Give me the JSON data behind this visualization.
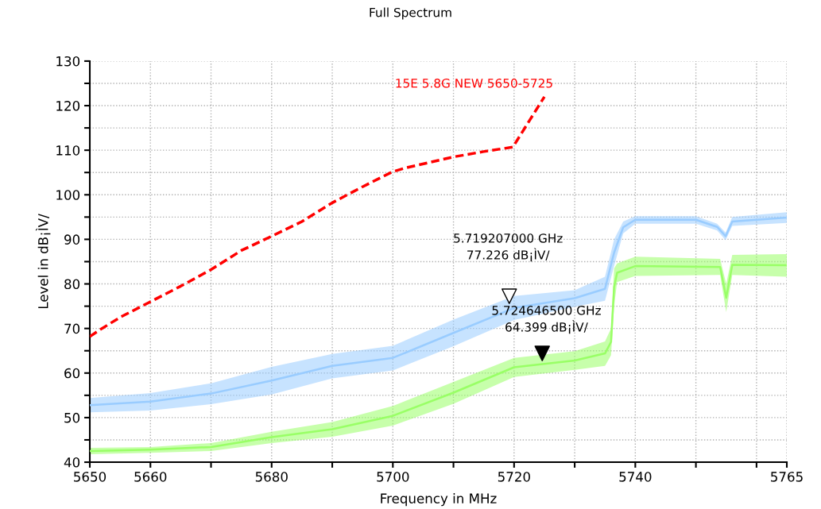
{
  "chart_data": {
    "type": "line",
    "title": "Full Spectrum",
    "xlabel": "Frequency in MHz",
    "ylabel": "Level in dB¡ÌV/",
    "xlim": [
      5650,
      5765
    ],
    "ylim": [
      40,
      130
    ],
    "xticks": [
      5650,
      5660,
      {
        "value": 5670,
        "label": null
      },
      5680,
      {
        "value": 5690,
        "label": null
      },
      5700,
      {
        "value": 5710,
        "label": null
      },
      5720,
      {
        "value": 5730,
        "label": null
      },
      5740,
      {
        "value": 5750,
        "label": null
      },
      {
        "value": 5760,
        "label": null
      },
      5765
    ],
    "yticks": [
      40,
      {
        "value": 45,
        "label": null
      },
      50,
      {
        "value": 55,
        "label": null
      },
      60,
      {
        "value": 65,
        "label": null
      },
      70,
      {
        "value": 75,
        "label": null
      },
      80,
      {
        "value": 85,
        "label": null
      },
      90,
      {
        "value": 95,
        "label": null
      },
      100,
      {
        "value": 105,
        "label": null
      },
      110,
      {
        "value": 115,
        "label": null
      },
      120,
      {
        "value": 125,
        "label": null
      },
      130
    ],
    "grid": true,
    "legend": false,
    "series": [
      {
        "color": "#99ccff",
        "x": [
          5650,
          5660,
          5670,
          5680,
          5690,
          5700,
          5710,
          5720,
          5730,
          5735,
          5736.5,
          5738,
          5740,
          5750,
          5753.5,
          5754.9,
          5756,
          5765
        ],
        "values": [
          52.8,
          53.6,
          55.4,
          58.3,
          61.6,
          63.4,
          69.0,
          74.6,
          76.8,
          78.9,
          87.0,
          92.7,
          94.4,
          94.4,
          92.8,
          90.7,
          94.0,
          94.9
        ],
        "lower": [
          51.2,
          51.6,
          53.0,
          55.2,
          58.8,
          60.6,
          66.0,
          71.9,
          74.9,
          76.2,
          84.0,
          91.3,
          93.5,
          93.5,
          92.0,
          89.8,
          93.0,
          93.7
        ],
        "upper": [
          54.4,
          55.5,
          57.7,
          61.4,
          64.3,
          66.1,
          72.0,
          77.3,
          78.6,
          81.6,
          90.0,
          94.0,
          95.2,
          95.2,
          93.5,
          91.5,
          95.0,
          96.1
        ]
      },
      {
        "color": "#99ff66",
        "x": [
          5650,
          5660,
          5670,
          5680,
          5690,
          5700,
          5710,
          5720,
          5730,
          5735,
          5736,
          5736.5,
          5737,
          5740,
          5754,
          5755,
          5756,
          5765
        ],
        "values": [
          42.5,
          42.8,
          43.4,
          45.6,
          47.4,
          50.4,
          55.6,
          61.3,
          62.8,
          64.4,
          67.0,
          79.3,
          82.5,
          84.0,
          83.8,
          76.9,
          84.3,
          84.2
        ],
        "lower": [
          41.8,
          42.1,
          42.5,
          44.3,
          45.7,
          48.2,
          53.1,
          59.1,
          60.7,
          61.6,
          64.0,
          75.0,
          80.4,
          81.8,
          82.0,
          73.7,
          82.0,
          81.6
        ],
        "upper": [
          43.2,
          43.4,
          44.3,
          46.8,
          49.0,
          52.6,
          58.0,
          63.4,
          64.9,
          67.1,
          70.0,
          83.5,
          84.6,
          86.1,
          85.6,
          80.0,
          86.5,
          86.7
        ]
      },
      {
        "name": "15E 5.8G NEW 5650-5725",
        "color": "#ff0000",
        "line_style": "dashed",
        "x": [
          5650,
          5652,
          5655,
          5660,
          5665,
          5670,
          5675,
          5680,
          5685,
          5690,
          5695,
          5700,
          5702,
          5710,
          5715,
          5719.8,
          5725
        ],
        "values": [
          68.2,
          70.0,
          72.5,
          76.0,
          79.5,
          83.2,
          87.5,
          90.7,
          94.0,
          98.2,
          101.8,
          105.2,
          106.0,
          108.5,
          109.7,
          110.7,
          122.0
        ]
      },
      {
        "type": "scatter",
        "marker": "triangle",
        "color": "#ffffff",
        "x": [
          5719.207
        ],
        "values": [
          77.226
        ]
      },
      {
        "type": "scatter",
        "marker": "triangle",
        "color": "#000000",
        "x": [
          5724.6465
        ],
        "values": [
          64.399
        ]
      }
    ],
    "annotations": [
      "5.719207000 GHz\n77.226 dB¡ÌV/",
      "5.724646500 GHz\n64.399 dB¡ÌV/"
    ]
  }
}
